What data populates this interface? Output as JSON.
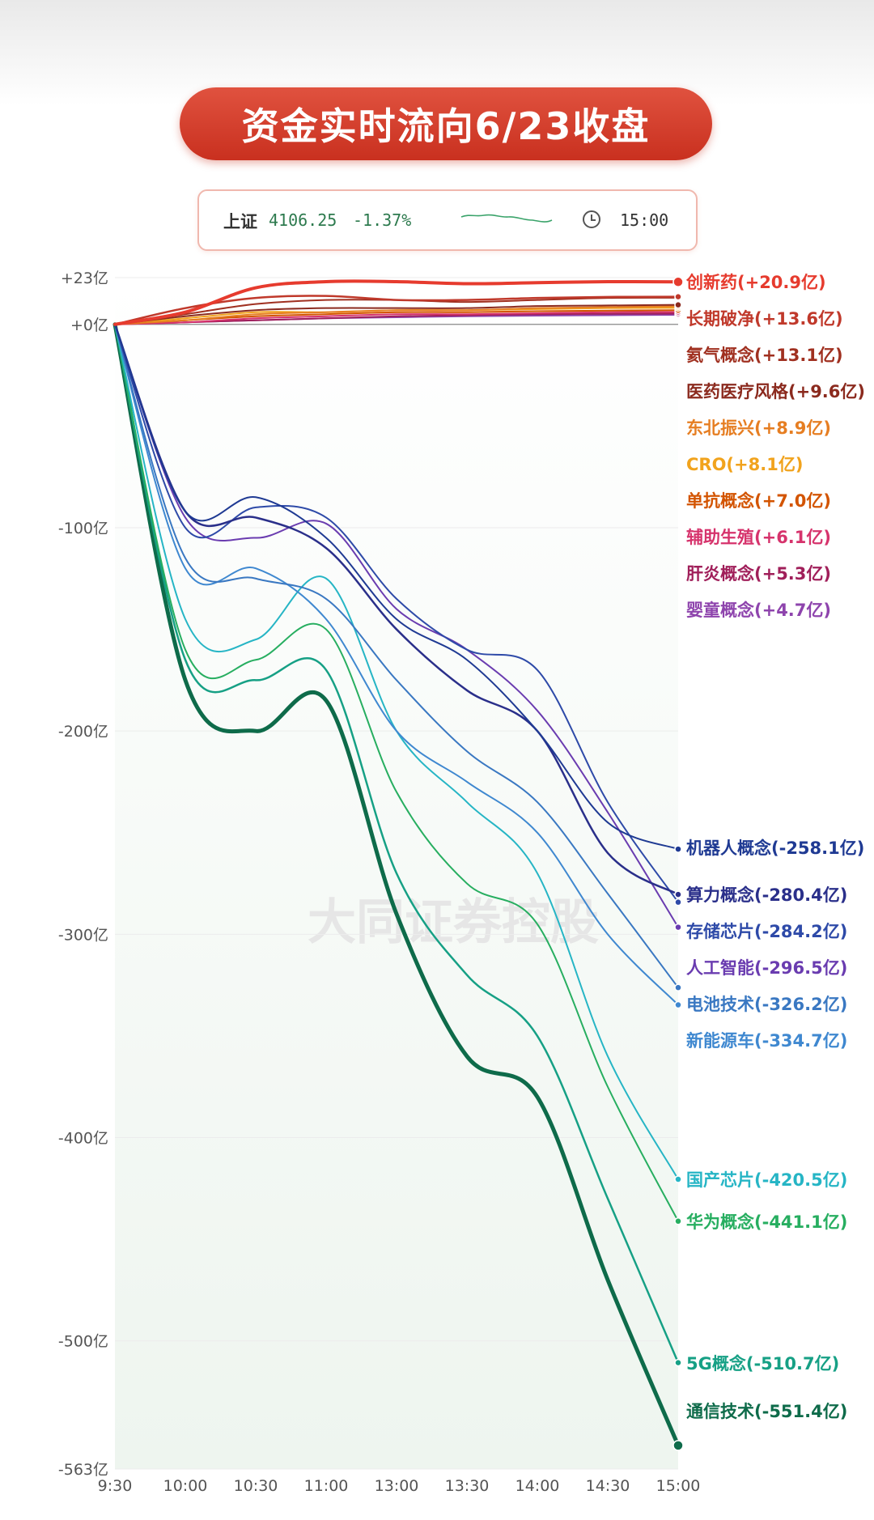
{
  "header": {
    "title": "资金实时流向6/23收盘"
  },
  "index": {
    "name": "上证",
    "value": "4106.25",
    "change": "-1.37%",
    "time": "15:00"
  },
  "watermark": "大同证券控股",
  "chart_data": {
    "type": "line",
    "title": "资金实时流向6/23收盘",
    "x_ticks": [
      "9:30",
      "10:00",
      "10:30",
      "11:00",
      "13:00",
      "13:30",
      "14:00",
      "14:30",
      "15:00"
    ],
    "y_ticks": [
      "+23亿",
      "+0亿",
      "-100亿",
      "-200亿",
      "-300亿",
      "-400亿",
      "-500亿",
      "-563亿"
    ],
    "ylim": [
      -563,
      23
    ],
    "x_positions": [
      0,
      0.25,
      0.5,
      0.75,
      1.0,
      1.25,
      1.5,
      1.75,
      2.0
    ],
    "series": [
      {
        "name": "创新药",
        "label": "创新药(+20.9亿)",
        "color": "#e63b2e",
        "width": 4,
        "values": [
          0,
          6,
          18,
          21,
          21,
          20,
          20.5,
          21,
          20.9
        ]
      },
      {
        "name": "长期破净",
        "label": "长期破净(+13.6亿)",
        "color": "#c0392b",
        "width": 2.5,
        "values": [
          0,
          8,
          13,
          14,
          12,
          12,
          13,
          13.5,
          13.6
        ]
      },
      {
        "name": "氦气概念",
        "label": "氦气概念(+13.1亿)",
        "color": "#a03020",
        "width": 2,
        "values": [
          0,
          5,
          10,
          12,
          12,
          11,
          12,
          13,
          13.1
        ]
      },
      {
        "name": "医药医疗风格",
        "label": "医药医疗风格(+9.6亿)",
        "color": "#8b2a1e",
        "width": 2,
        "values": [
          0,
          4,
          7,
          8,
          8,
          8,
          9,
          9.3,
          9.6
        ]
      },
      {
        "name": "东北振兴",
        "label": "东北振兴(+8.9亿)",
        "color": "#e67e22",
        "width": 2,
        "values": [
          0,
          2,
          5,
          6,
          7,
          7,
          8,
          8.5,
          8.9
        ]
      },
      {
        "name": "CRO",
        "label": "CRO(+8.1亿)",
        "color": "#f1a31d",
        "width": 2,
        "values": [
          0,
          3,
          6,
          6,
          7,
          7,
          7.5,
          8,
          8.1
        ]
      },
      {
        "name": "单抗概念",
        "label": "单抗概念(+7.0亿)",
        "color": "#d35400",
        "width": 2,
        "values": [
          0,
          2,
          4,
          5,
          6,
          6,
          6.5,
          6.8,
          7.0
        ]
      },
      {
        "name": "辅助生殖",
        "label": "辅助生殖(+6.1亿)",
        "color": "#d6336c",
        "width": 2,
        "values": [
          0,
          1,
          3,
          4,
          5,
          5,
          5.5,
          6,
          6.1
        ]
      },
      {
        "name": "肝炎概念",
        "label": "肝炎概念(+5.3亿)",
        "color": "#a01f5a",
        "width": 2,
        "values": [
          0,
          1,
          2,
          3,
          4,
          4.5,
          5,
          5.2,
          5.3
        ]
      },
      {
        "name": "婴童概念",
        "label": "婴童概念(+4.7亿)",
        "color": "#8e44ad",
        "width": 2,
        "values": [
          0,
          1,
          2,
          3,
          3.5,
          4,
          4.3,
          4.5,
          4.7
        ]
      },
      {
        "name": "机器人概念",
        "label": "机器人概念(-258.1亿)",
        "color": "#1f3a93",
        "width": 2,
        "values": [
          0,
          -92,
          -85,
          -105,
          -145,
          -165,
          -200,
          -245,
          -258.1
        ]
      },
      {
        "name": "算力概念",
        "label": "算力概念(-280.4亿)",
        "color": "#2a2f8a",
        "width": 2.5,
        "values": [
          0,
          -92,
          -95,
          -110,
          -150,
          -180,
          -200,
          -260,
          -280.4
        ]
      },
      {
        "name": "存储芯片",
        "label": "存储芯片(-284.2亿)",
        "color": "#2e4aa8",
        "width": 2,
        "values": [
          0,
          -100,
          -90,
          -95,
          -135,
          -160,
          -170,
          -235,
          -284.2
        ]
      },
      {
        "name": "人工智能",
        "label": "人工智能(-296.5亿)",
        "color": "#6a3cb0",
        "width": 2,
        "values": [
          0,
          -95,
          -105,
          -98,
          -140,
          -160,
          -190,
          -240,
          -296.5
        ]
      },
      {
        "name": "电池技术",
        "label": "电池技术(-326.2亿)",
        "color": "#3a78c2",
        "width": 2,
        "values": [
          0,
          -115,
          -125,
          -135,
          -175,
          -210,
          -235,
          -280,
          -326.2
        ]
      },
      {
        "name": "新能源车",
        "label": "新能源车(-334.7亿)",
        "color": "#3f88d0",
        "width": 2,
        "values": [
          0,
          -120,
          -120,
          -145,
          -200,
          -225,
          -250,
          -300,
          -334.7
        ]
      },
      {
        "name": "国产芯片",
        "label": "国产芯片(-420.5亿)",
        "color": "#26b5c5",
        "width": 2,
        "values": [
          0,
          -145,
          -155,
          -125,
          -200,
          -235,
          -270,
          -360,
          -420.5
        ]
      },
      {
        "name": "华为概念",
        "label": "华为概念(-441.1亿)",
        "color": "#27ae60",
        "width": 2,
        "values": [
          0,
          -160,
          -165,
          -150,
          -230,
          -275,
          -295,
          -375,
          -441.1
        ]
      },
      {
        "name": "5G概念",
        "label": "5G概念(-510.7亿)",
        "color": "#16a085",
        "width": 2.5,
        "values": [
          0,
          -165,
          -175,
          -170,
          -270,
          -320,
          -350,
          -430,
          -510.7
        ]
      },
      {
        "name": "通信技术",
        "label": "通信技术(-551.4亿)",
        "color": "#0e6b4a",
        "width": 5,
        "values": [
          0,
          -175,
          -200,
          -185,
          -290,
          -360,
          -380,
          -470,
          -551.4
        ]
      }
    ]
  }
}
